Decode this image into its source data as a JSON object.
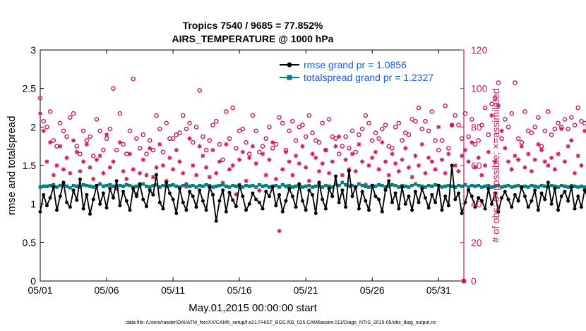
{
  "chart_data": {
    "type": "line",
    "title_line1": "Tropics 7540 / 9685 = 77.852%",
    "title_line2": "AIRS_TEMPERATURE @ 1000 hPa",
    "xlabel": "May.01,2015 00:00:00 start",
    "ylabel_left": "rmse and totalspread",
    "ylabel_right": "# of obs: o=possible; ×=assimilated",
    "footer": "data file: /Users/raeder/DAI/ATM_forcXX/CAM6_setup/f.e21.FHIST_BGC.f09_025.CAM6assim.011/Diags_NTrS_2015-05/obs_diag_output.nc",
    "x_ticks": [
      "05/01",
      "05/06",
      "05/11",
      "05/16",
      "05/21",
      "05/26",
      "05/31"
    ],
    "xlim_days": [
      0,
      31.9
    ],
    "y_left_ticks": [
      "0",
      "0.5",
      "1",
      "1.5",
      "2",
      "2.5",
      "3"
    ],
    "ylim_left": [
      0,
      3
    ],
    "y_right_ticks": [
      "0",
      "20",
      "40",
      "60",
      "80",
      "100",
      "120"
    ],
    "ylim_right": [
      0,
      120
    ],
    "legend": {
      "placement": "top-right",
      "rmse_label": "rmse grand pr = 1.0856",
      "spread_label": "totalspread grand pr = 1.2327"
    },
    "colors": {
      "rmse": "#000000",
      "spread": "#00807f",
      "obs": "#d01560",
      "legend_text": "#1a56e8"
    },
    "x_step_days": 0.25,
    "series": [
      {
        "name": "rmse",
        "values": [
          0.9,
          1.12,
          0.98,
          1.08,
          1.22,
          0.92,
          1.1,
          1.28,
          1.02,
          0.96,
          1.18,
          1.05,
          1.32,
          0.94,
          1.12,
          0.87,
          1.06,
          1.24,
          1.0,
          1.14,
          0.95,
          1.2,
          1.08,
          1.3,
          0.98,
          1.16,
          1.04,
          0.92,
          1.2,
          1.1,
          1.26,
          1.06,
          0.97,
          1.18,
          1.12,
          1.38,
          1.02,
          0.94,
          1.28,
          1.14,
          1.06,
          0.88,
          1.2,
          1.02,
          0.92,
          1.16,
          1.1,
          0.96,
          1.18,
          1.04,
          0.92,
          1.22,
          1.12,
          0.78,
          1.04,
          1.18,
          0.9,
          1.15,
          1.05,
          0.97,
          1.24,
          1.1,
          0.92,
          1.0,
          1.14,
          1.06,
          1.02,
          0.94,
          1.16,
          1.1,
          1.22,
          0.98,
          1.12,
          0.9,
          1.04,
          1.2,
          1.1,
          0.96,
          1.26,
          1.04,
          0.92,
          1.18,
          1.12,
          0.88,
          1.28,
          1.06,
          0.94,
          1.2,
          1.1,
          1.36,
          1.02,
          1.18,
          0.96,
          1.43,
          1.1,
          1.22,
          0.94,
          1.16,
          1.04,
          0.92,
          1.24,
          1.1,
          1.06,
          0.9,
          1.18,
          1.3,
          1.02,
          1.14,
          0.94,
          1.22,
          1.0,
          1.1,
          0.92,
          1.16,
          1.02,
          1.2,
          1.08,
          0.95,
          1.12,
          1.02,
          1.24,
          0.92,
          1.1,
          0.98,
          1.5,
          1.06,
          1.14,
          0.88,
          1.02,
          1.18,
          1.1,
          0.96,
          1.08,
          1.04,
          0.94,
          1.2,
          1.0,
          1.14,
          0.9,
          1.08,
          1.16,
          1.06,
          0.96,
          1.12,
          1.04,
          1.22,
          1.1,
          0.96,
          1.04,
          1.18,
          0.92,
          1.14,
          1.06,
          1.28,
          1.0,
          1.2,
          0.92,
          1.1,
          1.16,
          1.04,
          1.22,
          0.94,
          1.1,
          0.96,
          1.18,
          1.08,
          1.02,
          1.2,
          1.3,
          1.12,
          1.06,
          1.24,
          1.0,
          1.16
        ]
      },
      {
        "name": "totalspread",
        "values": [
          1.22,
          1.23,
          1.23,
          1.24,
          1.25,
          1.22,
          1.24,
          1.26,
          1.23,
          1.21,
          1.24,
          1.23,
          1.22,
          1.25,
          1.24,
          1.23,
          1.22,
          1.24,
          1.26,
          1.23,
          1.24,
          1.25,
          1.23,
          1.22,
          1.24,
          1.23,
          1.25,
          1.24,
          1.22,
          1.23,
          1.24,
          1.26,
          1.23,
          1.22,
          1.24,
          1.25,
          1.22,
          1.24,
          1.23,
          1.24,
          1.25,
          1.23,
          1.22,
          1.24,
          1.26,
          1.23,
          1.24,
          1.22,
          1.24,
          1.23,
          1.25,
          1.24,
          1.22,
          1.23,
          1.24,
          1.25,
          1.23,
          1.22,
          1.24,
          1.23,
          1.25,
          1.22,
          1.24,
          1.23,
          1.24,
          1.22,
          1.25,
          1.23,
          1.24,
          1.22,
          1.23,
          1.24,
          1.22,
          1.25,
          1.23,
          1.24,
          1.22,
          1.23,
          1.24,
          1.22,
          1.23,
          1.24,
          1.22,
          1.23,
          1.25,
          1.22,
          1.24,
          1.23,
          1.22,
          1.26,
          1.24,
          1.28,
          1.25,
          1.23,
          1.24,
          1.22,
          1.26,
          1.24,
          1.23,
          1.22,
          1.24,
          1.23,
          1.25,
          1.24,
          1.22,
          1.23,
          1.25,
          1.24,
          1.22,
          1.24,
          1.23,
          1.22,
          1.24,
          1.26,
          1.24,
          1.23,
          1.22,
          1.24,
          1.23,
          1.25,
          1.24,
          1.22,
          1.23,
          1.24,
          1.23,
          1.22,
          1.24,
          1.23,
          1.25,
          1.22,
          1.24,
          1.23,
          1.24,
          1.22,
          1.23,
          1.24,
          1.22,
          1.23,
          1.24,
          1.22,
          1.23,
          1.24,
          1.22,
          1.23,
          1.24,
          1.22,
          1.23,
          1.22,
          1.24,
          1.23,
          1.22,
          1.24,
          1.23,
          1.22,
          1.24,
          1.23,
          1.22,
          1.24,
          1.23,
          1.22,
          1.24,
          1.23,
          1.22,
          1.23,
          1.22,
          1.24,
          1.23,
          1.22,
          1.26,
          1.24,
          1.23,
          1.22,
          1.24,
          1.23
        ]
      },
      {
        "name": "obs_possible",
        "values": [
          95,
          83,
          80,
          88,
          73,
          70,
          82,
          78,
          75,
          85,
          87,
          70,
          66,
          78,
          73,
          75,
          65,
          84,
          78,
          68,
          74,
          79,
          100,
          68,
          87,
          71,
          66,
          78,
          105,
          74,
          69,
          76,
          66,
          73,
          68,
          86,
          79,
          67,
          82,
          74,
          74,
          76,
          77,
          86,
          79,
          82,
          72,
          80,
          99,
          75,
          68,
          73,
          81,
          83,
          71,
          63,
          88,
          74,
          90,
          69,
          78,
          79,
          72,
          66,
          86,
          78,
          67,
          70,
          74,
          80,
          69,
          71,
          85,
          82,
          68,
          78,
          83,
          73,
          80,
          81,
          75,
          86,
          77,
          73,
          72,
          82,
          68,
          84,
          75,
          74,
          66,
          70,
          75,
          69,
          78,
          67,
          76,
          79,
          86,
          82,
          73,
          77,
          74,
          79,
          81,
          70,
          69,
          80,
          82,
          73,
          77,
          76,
          84,
          83,
          90,
          79,
          83,
          78,
          88,
          73,
          68,
          73,
          91,
          69,
          81,
          86,
          81,
          74,
          87,
          75,
          84,
          71,
          73,
          81,
          90,
          76,
          92,
          95,
          103,
          74,
          84,
          80,
          87,
          103,
          74,
          72,
          88,
          78,
          77,
          80,
          85,
          70,
          78,
          88,
          76,
          79,
          82,
          80,
          84,
          79,
          85,
          81,
          90,
          83,
          82,
          80
        ]
      },
      {
        "name": "obs_assimilated",
        "values": [
          87,
          78,
          62,
          72,
          55,
          60,
          70,
          58,
          64,
          56,
          73,
          67,
          57,
          62,
          71,
          59,
          53,
          63,
          65,
          56,
          76,
          59,
          62,
          48,
          72,
          57,
          53,
          66,
          58,
          45,
          56,
          63,
          55,
          69,
          54,
          59,
          71,
          60,
          52,
          64,
          58,
          68,
          62,
          56,
          49,
          74,
          60,
          55,
          70,
          65,
          59,
          54,
          68,
          56,
          62,
          51,
          71,
          58,
          60,
          45,
          63,
          67,
          52,
          64,
          70,
          61,
          47,
          66,
          55,
          63,
          72,
          53,
          26,
          58,
          67,
          62,
          55,
          65,
          61,
          70,
          59,
          52,
          66,
          64,
          57,
          61,
          68,
          56,
          62,
          70,
          75,
          55,
          63,
          58,
          66,
          57,
          71,
          62,
          50,
          60,
          64,
          67,
          58,
          72,
          62,
          55,
          66,
          61,
          57,
          63,
          69,
          59,
          54,
          65,
          60,
          71,
          56,
          64,
          62,
          58,
          80,
          63,
          56,
          66,
          81,
          60,
          57,
          65,
          68,
          62,
          72,
          59,
          64,
          55,
          60,
          67,
          86,
          62,
          91,
          78,
          69,
          62,
          58,
          65,
          63,
          70,
          59,
          66,
          57,
          63,
          71,
          68,
          62,
          60,
          64,
          58,
          66,
          79,
          62,
          70,
          73,
          56,
          65,
          60,
          78,
          77
        ]
      }
    ]
  }
}
